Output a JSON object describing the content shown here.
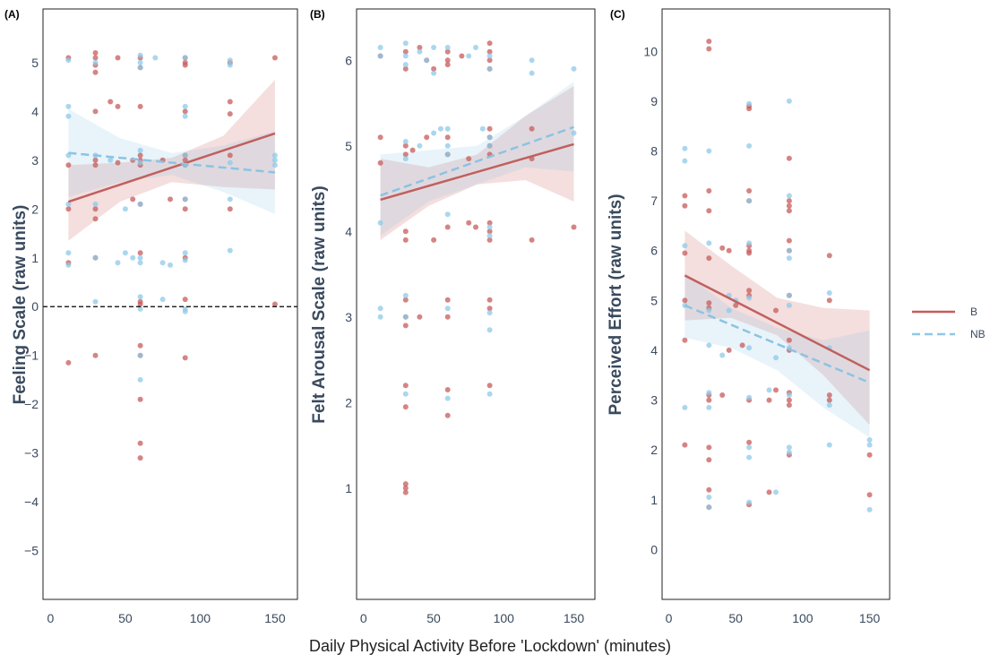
{
  "figure": {
    "xlabel": "Daily Physical Activity Before 'Lockdown' (minutes)",
    "legend": [
      {
        "label": "B",
        "color": "#c75b5b",
        "style": "solid"
      },
      {
        "label": "NB",
        "color": "#8ec9e8",
        "style": "dashed"
      }
    ],
    "colors": {
      "B": "#c75b5b",
      "NB": "#8ec9e8",
      "B_line": "#c0605e",
      "NB_line": "#8cc3e2"
    }
  },
  "chart_data": [
    {
      "type": "scatter",
      "panel": "(A)",
      "ylabel": "Feeling Scale (raw units)",
      "xlim": [
        -5,
        165
      ],
      "ylim": [
        -6,
        6.1
      ],
      "xticks": [
        0,
        50,
        100,
        150
      ],
      "yticks": [
        -5,
        -4,
        -3,
        -2,
        -1,
        0,
        1,
        2,
        3,
        4,
        5
      ],
      "reference_line": 0,
      "series": [
        {
          "name": "B",
          "fit": {
            "x": [
              12,
              150
            ],
            "y": [
              2.15,
              3.55
            ]
          },
          "ci": {
            "upper": [
              2.9,
              2.95,
              3.05,
              3.5,
              4.65
            ],
            "lower": [
              1.35,
              2.15,
              2.55,
              2.45,
              2.4
            ]
          },
          "points": {
            "x": [
              12,
              12,
              12,
              12,
              12,
              30,
              30,
              30,
              30,
              30,
              30,
              30,
              30,
              30,
              30,
              30,
              40,
              45,
              45,
              45,
              55,
              55,
              60,
              60,
              60,
              60,
              60,
              60,
              60,
              60,
              60,
              60,
              60,
              60,
              60,
              60,
              60,
              75,
              80,
              90,
              90,
              90,
              90,
              90,
              90,
              90,
              90,
              90,
              90,
              90,
              90,
              120,
              120,
              120,
              120,
              120,
              150,
              150
            ],
            "y": [
              5.1,
              2.9,
              2.0,
              0.9,
              -1.15,
              5.1,
              5.2,
              4.95,
              4.8,
              4.0,
              3.0,
              2.9,
              2.0,
              1.8,
              1.0,
              -1.0,
              4.2,
              5.1,
              4.1,
              2.95,
              3.0,
              2.2,
              5.1,
              4.9,
              4.1,
              3.1,
              3.0,
              2.9,
              2.1,
              1.1,
              0.1,
              0.05,
              -0.8,
              -1.0,
              -1.9,
              -2.8,
              -3.1,
              3.0,
              2.2,
              5.1,
              5.0,
              4.95,
              4.0,
              3.1,
              3.0,
              2.9,
              2.2,
              2.0,
              1.0,
              0.15,
              -1.05,
              5.0,
              4.2,
              3.95,
              3.1,
              2.0,
              5.1,
              0.05
            ]
          }
        },
        {
          "name": "NB",
          "fit": {
            "x": [
              12,
              150
            ],
            "y": [
              3.15,
              2.75
            ]
          },
          "ci": {
            "upper": [
              4.05,
              3.45,
              3.15,
              3.3,
              3.6
            ],
            "lower": [
              2.25,
              2.55,
              2.7,
              2.35,
              1.9
            ]
          },
          "points": {
            "x": [
              12,
              12,
              12,
              12,
              12,
              12,
              12,
              30,
              30,
              30,
              30,
              30,
              40,
              45,
              50,
              50,
              55,
              60,
              60,
              60,
              60,
              60,
              60,
              60,
              60,
              60,
              60,
              60,
              60,
              70,
              75,
              75,
              80,
              90,
              90,
              90,
              90,
              90,
              90,
              90,
              90,
              90,
              90,
              120,
              120,
              120,
              120,
              120,
              150,
              150,
              150
            ],
            "y": [
              5.05,
              4.1,
              3.9,
              3.1,
              2.1,
              1.1,
              0.85,
              5.0,
              3.1,
              2.1,
              1.0,
              0.1,
              3.0,
              0.9,
              2.0,
              1.1,
              1.0,
              5.15,
              5.0,
              4.9,
              3.2,
              2.95,
              2.1,
              1.0,
              0.9,
              0.2,
              -0.05,
              -1.0,
              -1.5,
              5.1,
              0.9,
              0.15,
              0.85,
              5.1,
              4.1,
              3.9,
              3.1,
              2.9,
              2.2,
              1.1,
              0.95,
              -0.05,
              -0.1,
              5.05,
              4.95,
              2.95,
              2.2,
              1.15,
              3.1,
              3.0,
              2.9
            ]
          }
        }
      ]
    },
    {
      "type": "scatter",
      "panel": "(B)",
      "ylabel": "Felt Arousal Scale (raw units)",
      "xlim": [
        -5,
        165
      ],
      "ylim": [
        -0.3,
        6.6
      ],
      "xticks": [
        0,
        50,
        100,
        150
      ],
      "yticks": [
        1,
        2,
        3,
        4,
        5,
        6
      ],
      "series": [
        {
          "name": "B",
          "fit": {
            "x": [
              12,
              150
            ],
            "y": [
              4.37,
              5.02
            ]
          },
          "ci": {
            "upper": [
              4.85,
              4.75,
              4.9,
              5.35,
              5.7
            ],
            "lower": [
              3.9,
              4.3,
              4.55,
              4.6,
              4.35
            ]
          },
          "points": {
            "x": [
              12,
              12,
              12,
              30,
              30,
              30,
              30,
              30,
              30,
              30,
              30,
              30,
              30,
              30,
              30,
              30,
              30,
              35,
              40,
              40,
              45,
              45,
              50,
              50,
              60,
              60,
              60,
              60,
              60,
              60,
              60,
              60,
              60,
              60,
              70,
              75,
              75,
              80,
              90,
              90,
              90,
              90,
              90,
              90,
              90,
              90,
              90,
              90,
              90,
              90,
              90,
              90,
              120,
              120,
              120,
              150
            ],
            "y": [
              6.05,
              5.1,
              4.8,
              6.1,
              5.9,
              5.0,
              4.9,
              4.0,
              3.9,
              3.2,
              3.0,
              2.9,
              2.2,
              1.95,
              1.05,
              1.0,
              0.95,
              4.95,
              6.15,
              3.0,
              6.0,
              5.1,
              5.9,
              3.9,
              6.1,
              6.0,
              5.95,
              5.1,
              4.9,
              4.05,
              3.2,
              3.0,
              2.15,
              1.85,
              6.05,
              4.85,
              4.1,
              4.05,
              6.2,
              6.1,
              6.0,
              5.9,
              5.2,
              5.1,
              5.0,
              4.9,
              4.1,
              4.0,
              3.9,
              3.2,
              3.1,
              2.2,
              5.2,
              4.85,
              3.9,
              4.05
            ]
          }
        },
        {
          "name": "NB",
          "fit": {
            "x": [
              12,
              150
            ],
            "y": [
              4.42,
              5.22
            ]
          },
          "ci": {
            "upper": [
              4.9,
              4.95,
              5.0,
              5.35,
              5.75
            ],
            "lower": [
              3.95,
              4.35,
              4.55,
              4.75,
              4.7
            ]
          },
          "points": {
            "x": [
              12,
              12,
              12,
              12,
              12,
              30,
              30,
              30,
              30,
              30,
              30,
              30,
              30,
              40,
              40,
              45,
              50,
              50,
              50,
              55,
              60,
              60,
              60,
              60,
              60,
              60,
              60,
              75,
              80,
              85,
              90,
              90,
              90,
              90,
              90,
              90,
              90,
              90,
              90,
              120,
              120,
              150,
              150
            ],
            "y": [
              6.15,
              6.05,
              4.1,
              3.1,
              3.0,
              6.2,
              6.05,
              5.95,
              5.05,
              4.85,
              3.25,
              3.0,
              2.1,
              6.1,
              5.0,
              6.0,
              6.15,
              5.85,
              5.15,
              5.2,
              6.15,
              5.2,
              5.0,
              4.9,
              4.2,
              3.1,
              2.05,
              6.05,
              6.15,
              5.2,
              6.05,
              5.9,
              5.1,
              5.0,
              4.05,
              3.95,
              3.05,
              2.85,
              2.1,
              6.0,
              5.85,
              5.9,
              5.15
            ]
          }
        }
      ]
    },
    {
      "type": "scatter",
      "panel": "(C)",
      "ylabel": "Perceived Effort (raw units)",
      "xlim": [
        -5,
        165
      ],
      "ylim": [
        -1,
        10.85
      ],
      "xticks": [
        0,
        50,
        100,
        150
      ],
      "yticks": [
        0,
        1,
        2,
        3,
        4,
        5,
        6,
        7,
        8,
        9,
        10
      ],
      "series": [
        {
          "name": "B",
          "fit": {
            "x": [
              12,
              150
            ],
            "y": [
              5.5,
              3.6
            ]
          },
          "ci": {
            "upper": [
              6.4,
              5.7,
              5.05,
              4.85,
              4.8
            ],
            "lower": [
              4.6,
              4.65,
              4.3,
              3.5,
              2.5
            ]
          },
          "points": {
            "x": [
              12,
              12,
              12,
              12,
              12,
              12,
              30,
              30,
              30,
              30,
              30,
              30,
              30,
              30,
              30,
              30,
              30,
              30,
              30,
              40,
              40,
              45,
              45,
              50,
              55,
              60,
              60,
              60,
              60,
              60,
              60,
              60,
              60,
              60,
              60,
              60,
              60,
              75,
              75,
              80,
              80,
              90,
              90,
              90,
              90,
              90,
              90,
              90,
              90,
              90,
              90,
              90,
              90,
              90,
              120,
              120,
              120,
              120,
              150,
              150
            ],
            "y": [
              7.1,
              6.9,
              5.95,
              5.0,
              4.2,
              2.1,
              10.2,
              10.05,
              7.2,
              6.8,
              5.85,
              4.95,
              4.85,
              3.1,
              3.0,
              2.05,
              1.8,
              1.2,
              0.85,
              6.05,
              3.1,
              6.0,
              4.0,
              4.9,
              4.1,
              8.9,
              8.85,
              7.2,
              7.0,
              6.1,
              6.0,
              5.95,
              5.2,
              5.1,
              3.0,
              2.15,
              0.9,
              3.0,
              1.15,
              4.8,
              3.2,
              7.85,
              7.0,
              6.9,
              6.8,
              6.2,
              6.0,
              5.1,
              4.2,
              4.0,
              3.15,
              3.0,
              2.9,
              1.9,
              5.9,
              5.0,
              3.1,
              3.0,
              1.9,
              1.1
            ]
          }
        },
        {
          "name": "NB",
          "fit": {
            "x": [
              12,
              150
            ],
            "y": [
              4.9,
              3.35
            ]
          },
          "ci": {
            "upper": [
              5.55,
              4.85,
              4.45,
              4.2,
              4.4
            ],
            "lower": [
              4.25,
              4.05,
              3.6,
              2.85,
              2.25
            ]
          },
          "points": {
            "x": [
              12,
              12,
              12,
              12,
              12,
              30,
              30,
              30,
              30,
              30,
              30,
              30,
              30,
              40,
              45,
              45,
              50,
              60,
              60,
              60,
              60,
              60,
              60,
              60,
              60,
              60,
              60,
              75,
              80,
              80,
              90,
              90,
              90,
              90,
              90,
              90,
              90,
              90,
              90,
              90,
              120,
              120,
              120,
              120,
              150,
              150,
              150
            ],
            "y": [
              8.05,
              7.8,
              6.1,
              4.9,
              2.85,
              8.0,
              6.15,
              4.8,
              4.1,
              3.15,
              2.85,
              1.05,
              0.85,
              3.9,
              5.1,
              4.8,
              5.0,
              8.95,
              8.1,
              7.0,
              6.15,
              5.05,
              4.05,
              3.05,
              2.05,
              1.85,
              0.95,
              3.2,
              3.85,
              1.15,
              9.0,
              7.1,
              6.0,
              5.85,
              5.1,
              4.9,
              4.05,
              3.1,
              2.05,
              1.95,
              5.15,
              4.05,
              2.9,
              2.1,
              2.2,
              2.1,
              0.8
            ]
          }
        }
      ]
    }
  ]
}
